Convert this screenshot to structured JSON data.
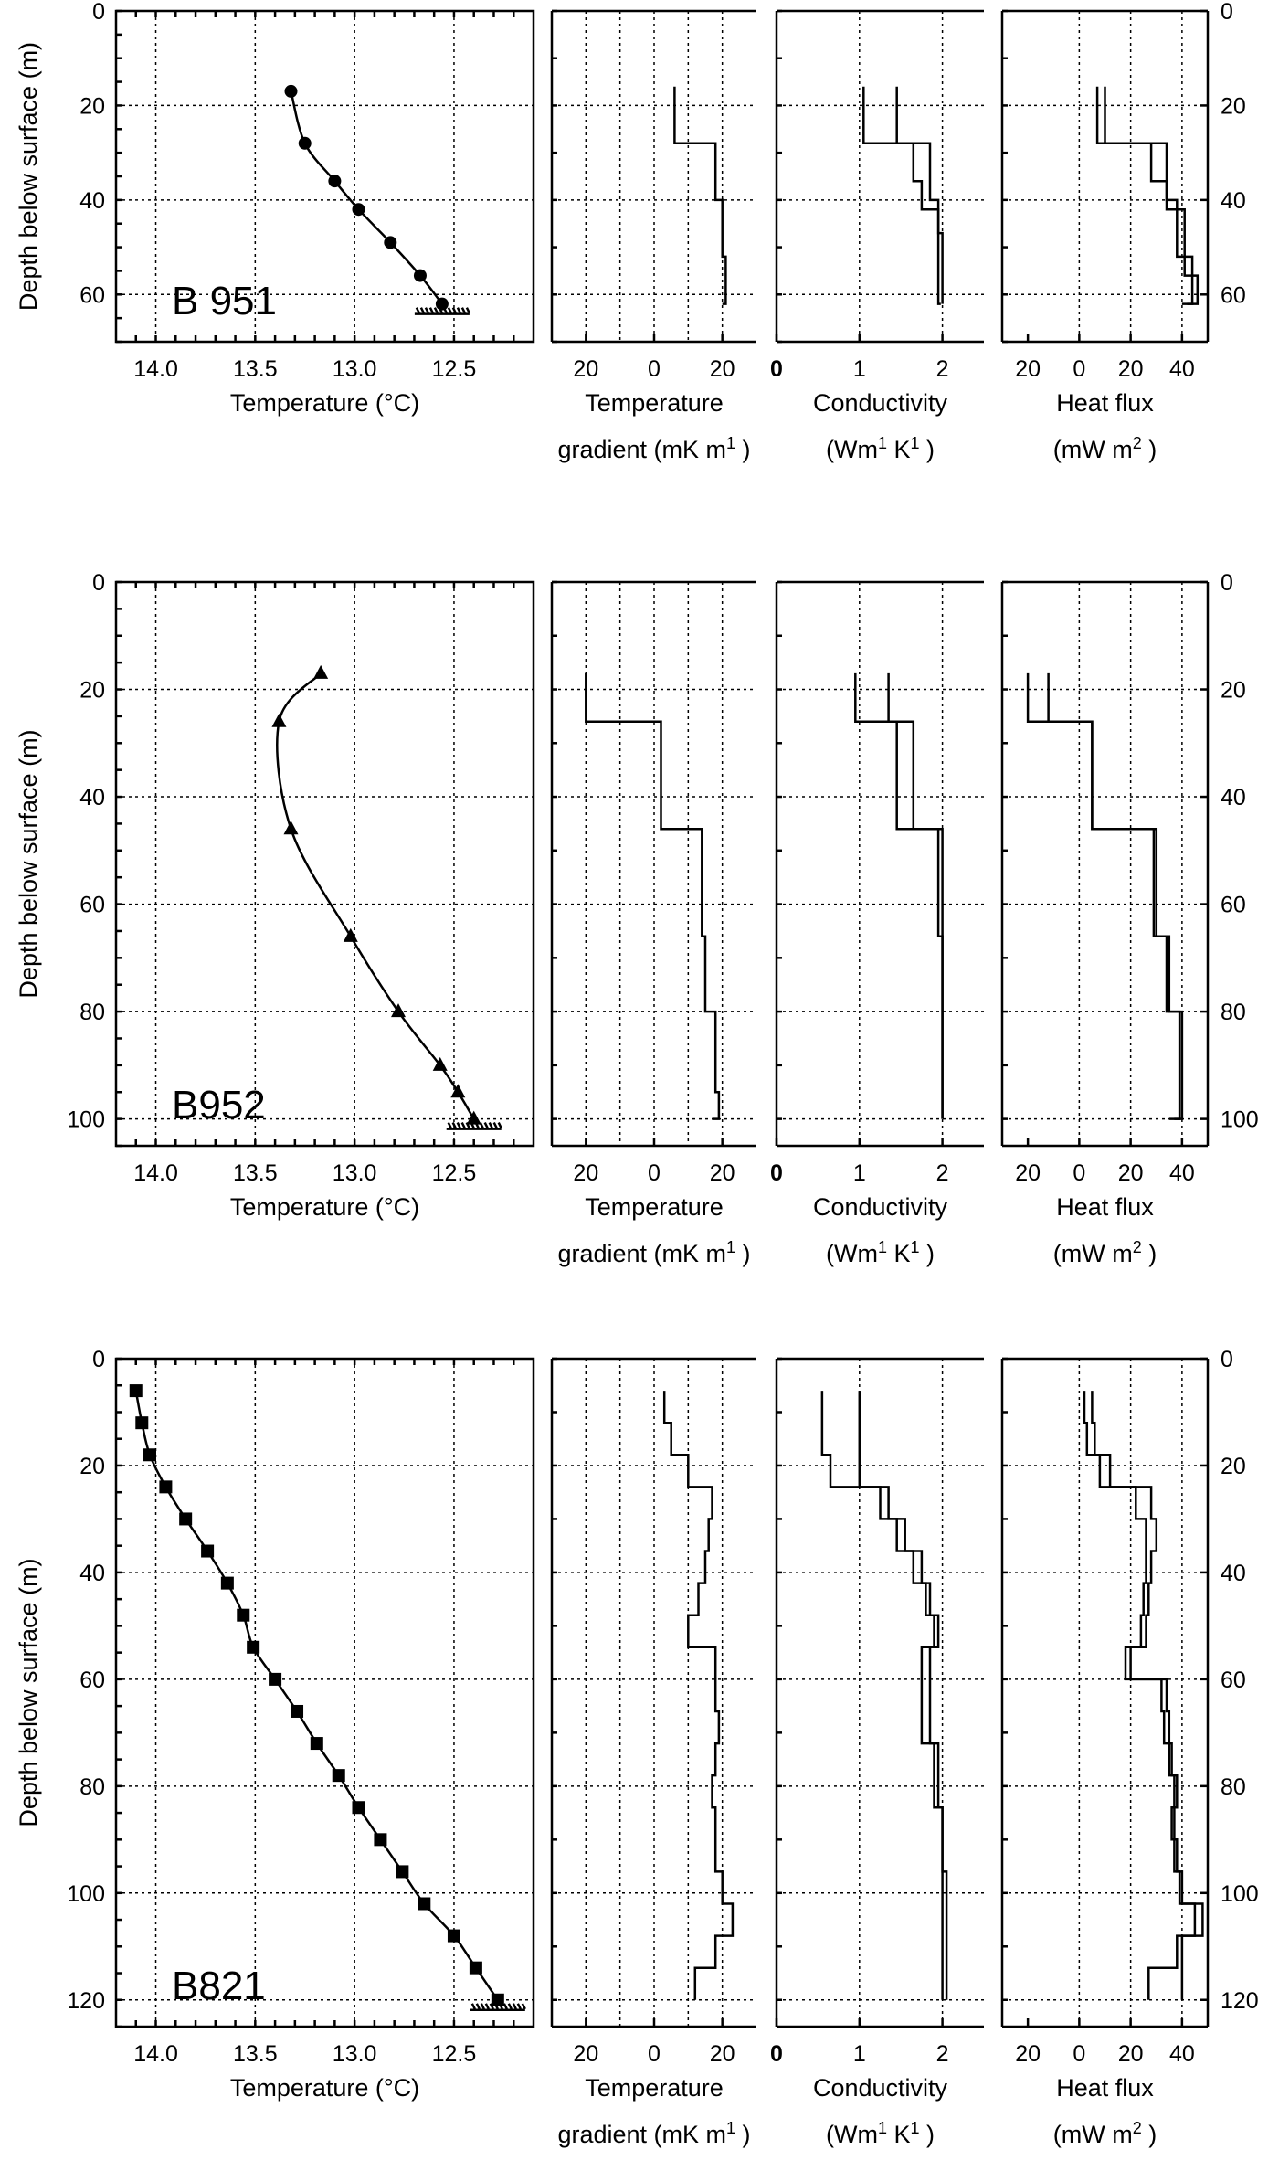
{
  "shared": {
    "temp_xlabel": "Temperature (°C)",
    "temp_ticks": [
      "14.0",
      "13.5",
      "13.0",
      "12.5"
    ],
    "grad_label_1": "Temperature",
    "grad_label_2": "gradient (mK m",
    "grad_sup": "1",
    "grad_close": " )",
    "grad_ticks": [
      "20",
      "0",
      "20"
    ],
    "cond_label_1": "Conductivity",
    "cond_label_2": "(Wm",
    "cond_sup1": "1",
    "cond_mid": "  K",
    "cond_sup2": "1",
    "cond_close": " )",
    "cond_ticks": [
      "0",
      "1",
      "2"
    ],
    "flux_label_1": "Heat flux",
    "flux_label_2": "(mW m",
    "flux_sup": "2",
    "flux_close": " )",
    "flux_ticks": [
      "20",
      "0",
      "20",
      "40"
    ],
    "ylabel": "Depth below surface (m)"
  },
  "chart_data": [
    {
      "type": "line",
      "borehole": "B 951",
      "marker": "circle",
      "ymax": 70,
      "depth_ticks": [
        "0",
        "20",
        "40",
        "60"
      ],
      "xlim_temperature": [
        14.2,
        12.1
      ],
      "temperature_profile": {
        "x": [
          13.32,
          13.25,
          13.1,
          12.98,
          12.82,
          12.67,
          12.56
        ],
        "y": [
          17,
          28,
          36,
          42,
          49,
          56,
          62
        ]
      },
      "gradient": [
        [
          {
            "d": 16,
            "v": 6
          },
          {
            "d": 28,
            "v": 6
          },
          {
            "d": 28,
            "v": 18
          },
          {
            "d": 40,
            "v": 19
          },
          {
            "d": 40,
            "v": 20
          },
          {
            "d": 52,
            "v": 21
          },
          {
            "d": 62,
            "v": 20
          }
        ]
      ],
      "conductivity": [
        [
          {
            "d": 16,
            "v": 1.05
          },
          {
            "d": 28,
            "v": 1.05
          },
          {
            "d": 28,
            "v": 1.85
          },
          {
            "d": 40,
            "v": 1.95
          },
          {
            "d": 47,
            "v": 2.0
          },
          {
            "d": 62,
            "v": 2.0
          }
        ],
        [
          {
            "d": 16,
            "v": 1.45
          },
          {
            "d": 28,
            "v": 1.45
          },
          {
            "d": 28,
            "v": 1.65
          },
          {
            "d": 36,
            "v": 1.75
          },
          {
            "d": 42,
            "v": 1.95
          },
          {
            "d": 62,
            "v": 1.98
          }
        ]
      ],
      "heat_flux": [
        [
          {
            "d": 16,
            "v": 7
          },
          {
            "d": 28,
            "v": 7
          },
          {
            "d": 28,
            "v": 34
          },
          {
            "d": 40,
            "v": 38
          },
          {
            "d": 52,
            "v": 44
          },
          {
            "d": 62,
            "v": 40
          }
        ],
        [
          {
            "d": 16,
            "v": 10
          },
          {
            "d": 28,
            "v": 10
          },
          {
            "d": 28,
            "v": 28
          },
          {
            "d": 36,
            "v": 34
          },
          {
            "d": 42,
            "v": 41
          },
          {
            "d": 56,
            "v": 46
          },
          {
            "d": 62,
            "v": 42
          }
        ]
      ]
    },
    {
      "type": "line",
      "borehole": "B952",
      "marker": "triangle",
      "ymax": 105,
      "depth_ticks": [
        "0",
        "20",
        "40",
        "60",
        "80",
        "100"
      ],
      "xlim_temperature": [
        14.2,
        12.1
      ],
      "temperature_profile": {
        "x": [
          13.17,
          13.38,
          13.32,
          13.02,
          12.78,
          12.57,
          12.48,
          12.4
        ],
        "y": [
          17,
          26,
          46,
          66,
          80,
          90,
          95,
          100
        ]
      },
      "gradient": [
        [
          {
            "d": 17,
            "v": -20
          },
          {
            "d": 26,
            "v": -20
          },
          {
            "d": 26,
            "v": 2
          },
          {
            "d": 46,
            "v": 2
          },
          {
            "d": 46,
            "v": 14
          },
          {
            "d": 66,
            "v": 15
          },
          {
            "d": 80,
            "v": 18
          },
          {
            "d": 95,
            "v": 19
          },
          {
            "d": 100,
            "v": 17
          }
        ]
      ],
      "conductivity": [
        [
          {
            "d": 17,
            "v": 0.95
          },
          {
            "d": 26,
            "v": 0.95
          },
          {
            "d": 26,
            "v": 1.45
          },
          {
            "d": 46,
            "v": 1.45
          },
          {
            "d": 46,
            "v": 2.0
          },
          {
            "d": 100,
            "v": 2.0
          }
        ],
        [
          {
            "d": 17,
            "v": 1.35
          },
          {
            "d": 26,
            "v": 1.35
          },
          {
            "d": 26,
            "v": 1.65
          },
          {
            "d": 46,
            "v": 1.65
          },
          {
            "d": 46,
            "v": 1.95
          },
          {
            "d": 66,
            "v": 1.95
          },
          {
            "d": 66,
            "v": 2.0
          },
          {
            "d": 100,
            "v": 2.0
          }
        ]
      ],
      "heat_flux": [
        [
          {
            "d": 17,
            "v": -20
          },
          {
            "d": 26,
            "v": -20
          },
          {
            "d": 26,
            "v": 5
          },
          {
            "d": 46,
            "v": 5
          },
          {
            "d": 46,
            "v": 29
          },
          {
            "d": 66,
            "v": 31
          },
          {
            "d": 66,
            "v": 35
          },
          {
            "d": 80,
            "v": 35
          },
          {
            "d": 80,
            "v": 39
          },
          {
            "d": 95,
            "v": 39
          },
          {
            "d": 100,
            "v": 35
          }
        ],
        [
          {
            "d": 17,
            "v": -12
          },
          {
            "d": 26,
            "v": -12
          },
          {
            "d": 26,
            "v": 5
          },
          {
            "d": 46,
            "v": 5
          },
          {
            "d": 46,
            "v": 30
          },
          {
            "d": 66,
            "v": 30
          },
          {
            "d": 66,
            "v": 34
          },
          {
            "d": 80,
            "v": 34
          },
          {
            "d": 80,
            "v": 40
          },
          {
            "d": 95,
            "v": 40
          },
          {
            "d": 100,
            "v": 37
          }
        ]
      ]
    },
    {
      "type": "line",
      "borehole": "B821",
      "marker": "square",
      "ymax": 125,
      "depth_ticks": [
        "0",
        "20",
        "40",
        "60",
        "80",
        "100",
        "120"
      ],
      "xlim_temperature": [
        14.2,
        12.1
      ],
      "temperature_profile": {
        "x": [
          14.1,
          14.07,
          14.03,
          13.95,
          13.85,
          13.74,
          13.64,
          13.56,
          13.51,
          13.4,
          13.29,
          13.19,
          13.08,
          12.98,
          12.87,
          12.76,
          12.65,
          12.5,
          12.39,
          12.28
        ],
        "y": [
          6,
          12,
          18,
          24,
          30,
          36,
          42,
          48,
          54,
          60,
          66,
          72,
          78,
          84,
          90,
          96,
          102,
          108,
          114,
          120
        ]
      },
      "gradient": [
        [
          {
            "d": 6,
            "v": 3
          },
          {
            "d": 12,
            "v": 5
          },
          {
            "d": 18,
            "v": 10
          },
          {
            "d": 24,
            "v": 17
          },
          {
            "d": 30,
            "v": 16
          },
          {
            "d": 36,
            "v": 15
          },
          {
            "d": 42,
            "v": 13
          },
          {
            "d": 48,
            "v": 10
          },
          {
            "d": 54,
            "v": 18
          },
          {
            "d": 60,
            "v": 18
          },
          {
            "d": 66,
            "v": 19
          },
          {
            "d": 72,
            "v": 18
          },
          {
            "d": 78,
            "v": 17
          },
          {
            "d": 84,
            "v": 18
          },
          {
            "d": 90,
            "v": 18
          },
          {
            "d": 96,
            "v": 20
          },
          {
            "d": 102,
            "v": 23
          },
          {
            "d": 108,
            "v": 18
          },
          {
            "d": 114,
            "v": 12
          },
          {
            "d": 120,
            "v": 12
          }
        ]
      ],
      "conductivity": [
        [
          {
            "d": 6,
            "v": 0.55
          },
          {
            "d": 12,
            "v": 0.55
          },
          {
            "d": 18,
            "v": 0.65
          },
          {
            "d": 24,
            "v": 1.25
          },
          {
            "d": 30,
            "v": 1.45
          },
          {
            "d": 36,
            "v": 1.65
          },
          {
            "d": 42,
            "v": 1.8
          },
          {
            "d": 48,
            "v": 1.9
          },
          {
            "d": 54,
            "v": 1.85
          },
          {
            "d": 60,
            "v": 1.85
          },
          {
            "d": 72,
            "v": 1.95
          },
          {
            "d": 84,
            "v": 2.0
          },
          {
            "d": 96,
            "v": 2.05
          },
          {
            "d": 120,
            "v": 2.05
          }
        ],
        [
          {
            "d": 6,
            "v": 1.0
          },
          {
            "d": 18,
            "v": 1.0
          },
          {
            "d": 24,
            "v": 1.35
          },
          {
            "d": 30,
            "v": 1.55
          },
          {
            "d": 36,
            "v": 1.75
          },
          {
            "d": 42,
            "v": 1.85
          },
          {
            "d": 48,
            "v": 1.95
          },
          {
            "d": 54,
            "v": 1.75
          },
          {
            "d": 66,
            "v": 1.75
          },
          {
            "d": 72,
            "v": 1.9
          },
          {
            "d": 84,
            "v": 2.0
          },
          {
            "d": 120,
            "v": 2.0
          }
        ]
      ],
      "heat_flux": [
        [
          {
            "d": 6,
            "v": 2
          },
          {
            "d": 12,
            "v": 3
          },
          {
            "d": 18,
            "v": 8
          },
          {
            "d": 24,
            "v": 22
          },
          {
            "d": 30,
            "v": 26
          },
          {
            "d": 36,
            "v": 26
          },
          {
            "d": 42,
            "v": 25
          },
          {
            "d": 48,
            "v": 24
          },
          {
            "d": 54,
            "v": 18
          },
          {
            "d": 60,
            "v": 32
          },
          {
            "d": 66,
            "v": 33
          },
          {
            "d": 72,
            "v": 36
          },
          {
            "d": 78,
            "v": 38
          },
          {
            "d": 84,
            "v": 36
          },
          {
            "d": 90,
            "v": 37
          },
          {
            "d": 96,
            "v": 39
          },
          {
            "d": 102,
            "v": 45
          },
          {
            "d": 108,
            "v": 38
          },
          {
            "d": 114,
            "v": 27
          },
          {
            "d": 120,
            "v": 27
          }
        ],
        [
          {
            "d": 6,
            "v": 5
          },
          {
            "d": 12,
            "v": 6
          },
          {
            "d": 18,
            "v": 12
          },
          {
            "d": 24,
            "v": 28
          },
          {
            "d": 30,
            "v": 30
          },
          {
            "d": 36,
            "v": 28
          },
          {
            "d": 42,
            "v": 27
          },
          {
            "d": 48,
            "v": 26
          },
          {
            "d": 54,
            "v": 20
          },
          {
            "d": 60,
            "v": 34
          },
          {
            "d": 66,
            "v": 35
          },
          {
            "d": 72,
            "v": 35
          },
          {
            "d": 78,
            "v": 37
          },
          {
            "d": 84,
            "v": 37
          },
          {
            "d": 90,
            "v": 38
          },
          {
            "d": 96,
            "v": 40
          },
          {
            "d": 102,
            "v": 48
          },
          {
            "d": 108,
            "v": 40
          },
          {
            "d": 114,
            "v": 40
          },
          {
            "d": 120,
            "v": 40
          }
        ]
      ]
    }
  ]
}
